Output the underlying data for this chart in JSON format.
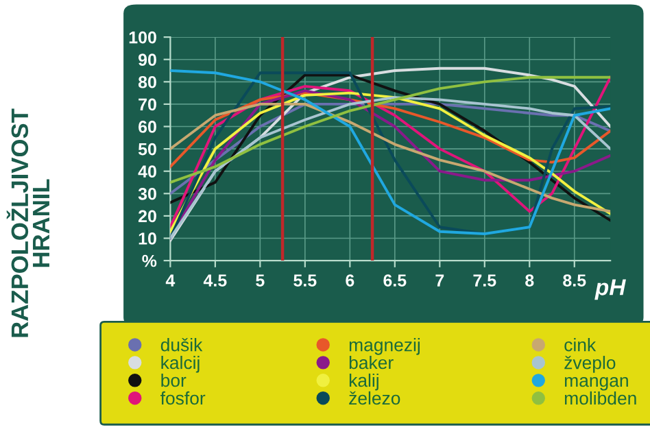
{
  "chart_data": {
    "type": "line",
    "title": "RAZPOLOŽLJIVOST\nHRANIL",
    "xlabel": "pH",
    "x": [
      4,
      4.5,
      5,
      5.5,
      6,
      6.5,
      7,
      7.5,
      8,
      8.25,
      8.5,
      8.9
    ],
    "xlim": [
      4,
      8.9
    ],
    "xticks": [
      4,
      4.5,
      5,
      5.5,
      6,
      6.5,
      7,
      7.5,
      8,
      8.5
    ],
    "ylim": [
      0,
      100
    ],
    "yticks": [
      {
        "value": 0,
        "label": "%"
      },
      10,
      20,
      30,
      40,
      50,
      60,
      70,
      80,
      90,
      100
    ],
    "grid": true,
    "legend": "bottom",
    "marker": "none",
    "line_style": "solid",
    "ref_lines": [
      {
        "axis": "x",
        "value": 5.25,
        "color": "#c0282a"
      },
      {
        "axis": "x",
        "value": 6.25,
        "color": "#c0282a"
      }
    ],
    "series": [
      {
        "name": "dušik",
        "color": "#6a70b0",
        "values": [
          30,
          45,
          60,
          70,
          70,
          70,
          70,
          68,
          66,
          65,
          65,
          58
        ]
      },
      {
        "name": "kalcij",
        "color": "#d8dde0",
        "values": [
          9,
          40,
          55,
          75,
          82,
          85,
          86,
          86,
          83,
          81,
          78,
          60
        ]
      },
      {
        "name": "bor",
        "color": "#111111",
        "values": [
          26,
          35,
          65,
          83,
          83,
          76,
          70,
          58,
          44,
          36,
          28,
          18
        ]
      },
      {
        "name": "fosfor",
        "color": "#e0157a",
        "values": [
          15,
          60,
          72,
          78,
          76,
          65,
          50,
          40,
          22,
          30,
          50,
          82
        ]
      },
      {
        "name": "magnezij",
        "color": "#e8582a",
        "values": [
          42,
          63,
          72,
          75,
          72,
          68,
          62,
          55,
          45,
          44,
          46,
          58
        ]
      },
      {
        "name": "baker",
        "color": "#8a1a8a",
        "values": [
          10,
          45,
          70,
          76,
          72,
          60,
          40,
          36,
          36,
          38,
          40,
          47
        ]
      },
      {
        "name": "kalij",
        "color": "#f0f040",
        "values": [
          13,
          50,
          66,
          74,
          75,
          73,
          68,
          56,
          46,
          39,
          31,
          21
        ]
      },
      {
        "name": "železo",
        "color": "#0a4a5a",
        "values": [
          10,
          55,
          84,
          84,
          84,
          45,
          15,
          12,
          15,
          50,
          68,
          69
        ]
      },
      {
        "name": "cink",
        "color": "#c8a870",
        "values": [
          50,
          65,
          70,
          70,
          62,
          52,
          45,
          40,
          32,
          28,
          25,
          22
        ]
      },
      {
        "name": "žveplo",
        "color": "#a8c4d0",
        "values": [
          10,
          40,
          55,
          63,
          70,
          73,
          72,
          70,
          68,
          66,
          65,
          50
        ]
      },
      {
        "name": "mangan",
        "color": "#20a8e0",
        "values": [
          85,
          84,
          80,
          72,
          60,
          25,
          13,
          12,
          15,
          40,
          65,
          68
        ]
      },
      {
        "name": "molibden",
        "color": "#90c040",
        "values": [
          35,
          42,
          52,
          60,
          67,
          72,
          77,
          80,
          82,
          82,
          82,
          82
        ]
      }
    ]
  }
}
